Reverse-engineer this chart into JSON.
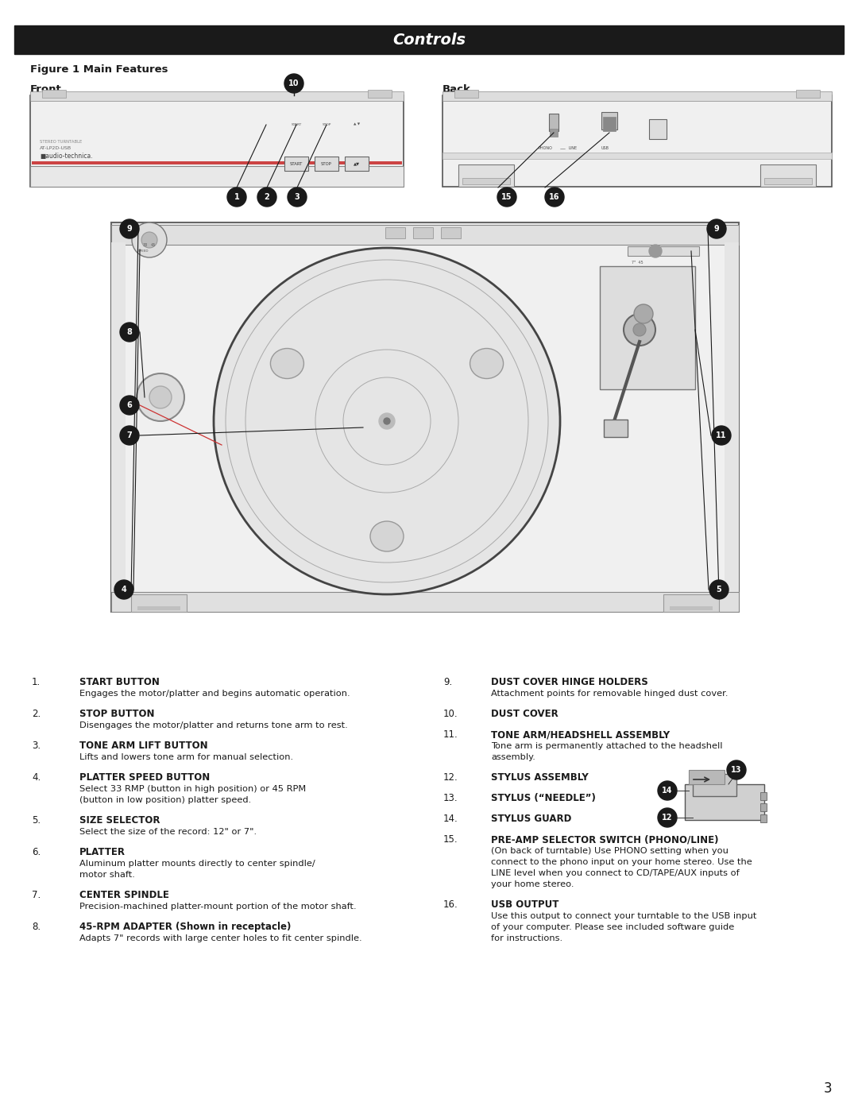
{
  "title": "Controls",
  "title_bg": "#1a1a1a",
  "title_color": "#ffffff",
  "subtitle": "Figure 1 Main Features",
  "front_label": "Front",
  "back_label": "Back",
  "page_number": "3",
  "bg_color": "#ffffff",
  "text_color": "#1a1a1a",
  "items_left": [
    [
      "1.",
      "START BUTTON",
      "Engages the motor/platter and begins automatic operation."
    ],
    [
      "2.",
      "STOP BUTTON",
      "Disengages the motor/platter and returns tone arm to rest."
    ],
    [
      "3.",
      "TONE ARM LIFT BUTTON",
      "Lifts and lowers tone arm for manual selection."
    ],
    [
      "4.",
      "PLATTER SPEED BUTTON",
      "Select 33 RMP (button in high position) or 45 RPM\n(button in low position) platter speed."
    ],
    [
      "5.",
      "SIZE SELECTOR",
      "Select the size of the record: 12\" or 7\"."
    ],
    [
      "6.",
      "PLATTER",
      "Aluminum platter mounts directly to center spindle/\nmotor shaft."
    ],
    [
      "7.",
      "CENTER SPINDLE",
      "Precision-machined platter-mount portion of the motor shaft."
    ],
    [
      "8.",
      "45-RPM ADAPTER (Shown in receptacle)",
      "Adapts 7\" records with large center holes to fit center spindle."
    ]
  ],
  "items_right": [
    [
      "9.",
      "DUST COVER HINGE HOLDERS",
      "Attachment points for removable hinged dust cover."
    ],
    [
      "10.",
      "DUST COVER",
      ""
    ],
    [
      "11.",
      "TONE ARM/HEADSHELL ASSEMBLY",
      "Tone arm is permanently attached to the headshell\nassembly."
    ],
    [
      "12.",
      "STYLUS ASSEMBLY",
      ""
    ],
    [
      "13.",
      "STYLUS (“NEEDLE”)",
      ""
    ],
    [
      "14.",
      "STYLUS GUARD",
      ""
    ],
    [
      "15.",
      "PRE-AMP SELECTOR SWITCH (PHONO/LINE)",
      "(On back of turntable) Use PHONO setting when you\nconnect to the phono input on your home stereo. Use the\nLINE level when you connect to CD/TAPE/AUX inputs of\nyour home stereo."
    ],
    [
      "16.",
      "USB OUTPUT",
      "Use this output to connect your turntable to the USB input\nof your computer. Please see included software guide\nfor instructions."
    ]
  ]
}
